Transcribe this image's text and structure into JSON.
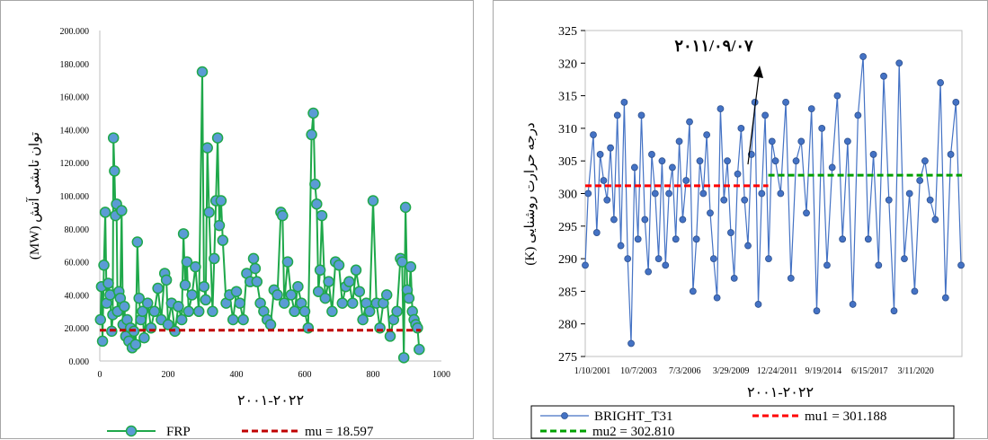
{
  "chart_data": [
    {
      "type": "line",
      "ylabel": "توان تابشی آتش (MW)",
      "xlabel": "۲۰۰۱-۲۰۲۲",
      "xlim": [
        0,
        1000
      ],
      "ylim": [
        0,
        200
      ],
      "x_ticks": [
        "0",
        "200",
        "400",
        "600",
        "800",
        "1000"
      ],
      "y_ticks": [
        "0.000",
        "20.000",
        "40.000",
        "60.000",
        "80.000",
        "100.000",
        "120.000",
        "140.000",
        "160.000",
        "180.000",
        "200.000"
      ],
      "grid": false,
      "legend_position": "bottom",
      "colors": {
        "line": "#1fa84a",
        "marker": "#5b9bd5",
        "marker_edge": "#1fa84a",
        "mu": "#c00000"
      },
      "series": [
        {
          "name": "FRP",
          "points": [
            [
              2,
              25
            ],
            [
              5,
              45
            ],
            [
              8,
              12
            ],
            [
              12,
              58
            ],
            [
              16,
              90
            ],
            [
              20,
              35
            ],
            [
              25,
              47
            ],
            [
              30,
              40
            ],
            [
              35,
              18
            ],
            [
              38,
              28
            ],
            [
              40,
              135
            ],
            [
              43,
              115
            ],
            [
              46,
              88
            ],
            [
              49,
              95
            ],
            [
              52,
              30
            ],
            [
              56,
              42
            ],
            [
              60,
              38
            ],
            [
              64,
              91
            ],
            [
              68,
              22
            ],
            [
              72,
              33
            ],
            [
              76,
              15
            ],
            [
              80,
              25
            ],
            [
              85,
              12
            ],
            [
              90,
              20
            ],
            [
              95,
              8
            ],
            [
              100,
              18
            ],
            [
              105,
              10
            ],
            [
              110,
              72
            ],
            [
              115,
              38
            ],
            [
              120,
              25
            ],
            [
              125,
              30
            ],
            [
              130,
              14
            ],
            [
              140,
              35
            ],
            [
              150,
              20
            ],
            [
              160,
              30
            ],
            [
              170,
              44
            ],
            [
              180,
              25
            ],
            [
              190,
              53
            ],
            [
              195,
              49
            ],
            [
              200,
              22
            ],
            [
              210,
              35
            ],
            [
              220,
              18
            ],
            [
              230,
              33
            ],
            [
              240,
              25
            ],
            [
              245,
              77
            ],
            [
              250,
              46
            ],
            [
              255,
              60
            ],
            [
              260,
              30
            ],
            [
              270,
              40
            ],
            [
              280,
              57
            ],
            [
              290,
              30
            ],
            [
              300,
              175
            ],
            [
              305,
              45
            ],
            [
              310,
              37
            ],
            [
              315,
              129
            ],
            [
              320,
              90
            ],
            [
              330,
              30
            ],
            [
              335,
              62
            ],
            [
              340,
              97
            ],
            [
              345,
              135
            ],
            [
              350,
              82
            ],
            [
              355,
              97
            ],
            [
              360,
              73
            ],
            [
              370,
              35
            ],
            [
              380,
              40
            ],
            [
              390,
              25
            ],
            [
              400,
              42
            ],
            [
              410,
              35
            ],
            [
              420,
              25
            ],
            [
              430,
              53
            ],
            [
              440,
              48
            ],
            [
              450,
              62
            ],
            [
              455,
              56
            ],
            [
              460,
              48
            ],
            [
              470,
              35
            ],
            [
              480,
              30
            ],
            [
              490,
              25
            ],
            [
              500,
              22
            ],
            [
              510,
              43
            ],
            [
              520,
              40
            ],
            [
              530,
              90
            ],
            [
              535,
              88
            ],
            [
              540,
              35
            ],
            [
              550,
              60
            ],
            [
              560,
              40
            ],
            [
              570,
              30
            ],
            [
              580,
              45
            ],
            [
              590,
              35
            ],
            [
              600,
              30
            ],
            [
              610,
              20
            ],
            [
              620,
              137
            ],
            [
              625,
              150
            ],
            [
              630,
              107
            ],
            [
              635,
              95
            ],
            [
              640,
              42
            ],
            [
              645,
              55
            ],
            [
              650,
              88
            ],
            [
              660,
              38
            ],
            [
              670,
              48
            ],
            [
              680,
              30
            ],
            [
              690,
              60
            ],
            [
              700,
              58
            ],
            [
              710,
              35
            ],
            [
              720,
              45
            ],
            [
              730,
              48
            ],
            [
              740,
              35
            ],
            [
              750,
              55
            ],
            [
              760,
              42
            ],
            [
              770,
              25
            ],
            [
              780,
              35
            ],
            [
              790,
              30
            ],
            [
              800,
              97
            ],
            [
              810,
              35
            ],
            [
              820,
              20
            ],
            [
              830,
              35
            ],
            [
              840,
              40
            ],
            [
              850,
              15
            ],
            [
              860,
              25
            ],
            [
              870,
              30
            ],
            [
              880,
              62
            ],
            [
              885,
              60
            ],
            [
              890,
              2
            ],
            [
              895,
              93
            ],
            [
              900,
              43
            ],
            [
              905,
              38
            ],
            [
              910,
              57
            ],
            [
              915,
              30
            ],
            [
              920,
              25
            ],
            [
              925,
              22
            ],
            [
              930,
              20
            ],
            [
              935,
              7
            ]
          ]
        },
        {
          "name": "mu = 18.597",
          "x": [
            0,
            940
          ],
          "y": [
            18.597,
            18.597
          ]
        }
      ]
    },
    {
      "type": "line",
      "annotation": "۲۰۱۱/۰۹/۰۷",
      "ylabel": "درجه حرارت روشنایی (K)",
      "xlabel": "۲۰۰۱-۲۰۲۲",
      "ylim": [
        275,
        325
      ],
      "x_ticks": [
        "1/10/2001",
        "10/7/2003",
        "7/3/2006",
        "3/29/2009",
        "12/24/2011",
        "9/19/2014",
        "6/15/2017",
        "3/11/2020"
      ],
      "y_ticks": [
        "275",
        "280",
        "285",
        "290",
        "295",
        "300",
        "305",
        "310",
        "315",
        "320",
        "325"
      ],
      "grid": false,
      "legend_position": "bottom",
      "colors": {
        "line": "#4472c4",
        "marker": "#4472c4",
        "mu1": "#ff0000",
        "mu2": "#00a000"
      },
      "series": [
        {
          "name": "BRIGHT_T31",
          "points": [
            [
              2001.03,
              289
            ],
            [
              2001.2,
              300
            ],
            [
              2001.5,
              309
            ],
            [
              2001.7,
              294
            ],
            [
              2001.9,
              306
            ],
            [
              2002.1,
              302
            ],
            [
              2002.3,
              299
            ],
            [
              2002.5,
              307
            ],
            [
              2002.7,
              296
            ],
            [
              2002.9,
              312
            ],
            [
              2003.1,
              292
            ],
            [
              2003.3,
              314
            ],
            [
              2003.5,
              290
            ],
            [
              2003.7,
              277
            ],
            [
              2003.9,
              304
            ],
            [
              2004.1,
              293
            ],
            [
              2004.3,
              312
            ],
            [
              2004.5,
              296
            ],
            [
              2004.7,
              288
            ],
            [
              2004.9,
              306
            ],
            [
              2005.1,
              300
            ],
            [
              2005.3,
              290
            ],
            [
              2005.5,
              305
            ],
            [
              2005.7,
              289
            ],
            [
              2005.9,
              300
            ],
            [
              2006.1,
              304
            ],
            [
              2006.3,
              293
            ],
            [
              2006.5,
              308
            ],
            [
              2006.7,
              296
            ],
            [
              2006.9,
              302
            ],
            [
              2007.1,
              311
            ],
            [
              2007.3,
              285
            ],
            [
              2007.5,
              293
            ],
            [
              2007.7,
              305
            ],
            [
              2007.9,
              300
            ],
            [
              2008.1,
              309
            ],
            [
              2008.3,
              297
            ],
            [
              2008.5,
              290
            ],
            [
              2008.7,
              284
            ],
            [
              2008.9,
              313
            ],
            [
              2009.1,
              299
            ],
            [
              2009.3,
              305
            ],
            [
              2009.5,
              294
            ],
            [
              2009.7,
              287
            ],
            [
              2009.9,
              303
            ],
            [
              2010.1,
              310
            ],
            [
              2010.3,
              299
            ],
            [
              2010.5,
              292
            ],
            [
              2010.7,
              306
            ],
            [
              2010.9,
              314
            ],
            [
              2011.1,
              283
            ],
            [
              2011.3,
              300
            ],
            [
              2011.5,
              312
            ],
            [
              2011.7,
              290
            ],
            [
              2011.9,
              308
            ],
            [
              2012.1,
              305
            ],
            [
              2012.4,
              300
            ],
            [
              2012.7,
              314
            ],
            [
              2013.0,
              287
            ],
            [
              2013.3,
              305
            ],
            [
              2013.6,
              308
            ],
            [
              2013.9,
              297
            ],
            [
              2014.2,
              313
            ],
            [
              2014.5,
              282
            ],
            [
              2014.8,
              310
            ],
            [
              2015.1,
              289
            ],
            [
              2015.4,
              304
            ],
            [
              2015.7,
              315
            ],
            [
              2016.0,
              293
            ],
            [
              2016.3,
              308
            ],
            [
              2016.6,
              283
            ],
            [
              2016.9,
              312
            ],
            [
              2017.2,
              321
            ],
            [
              2017.5,
              293
            ],
            [
              2017.8,
              306
            ],
            [
              2018.1,
              289
            ],
            [
              2018.4,
              318
            ],
            [
              2018.7,
              299
            ],
            [
              2019.0,
              282
            ],
            [
              2019.3,
              320
            ],
            [
              2019.6,
              290
            ],
            [
              2019.9,
              300
            ],
            [
              2020.2,
              285
            ],
            [
              2020.5,
              302
            ],
            [
              2020.8,
              305
            ],
            [
              2021.1,
              299
            ],
            [
              2021.4,
              296
            ],
            [
              2021.7,
              317
            ],
            [
              2022.0,
              284
            ],
            [
              2022.3,
              306
            ],
            [
              2022.6,
              314
            ],
            [
              2022.9,
              289
            ]
          ]
        },
        {
          "name": "mu1 = 301.188",
          "x": [
            2001.03,
            2011.68
          ],
          "y": [
            301.188,
            301.188
          ]
        },
        {
          "name": "mu2 = 302.810",
          "x": [
            2011.68,
            2022.95
          ],
          "y": [
            302.81,
            302.81
          ]
        }
      ]
    }
  ]
}
